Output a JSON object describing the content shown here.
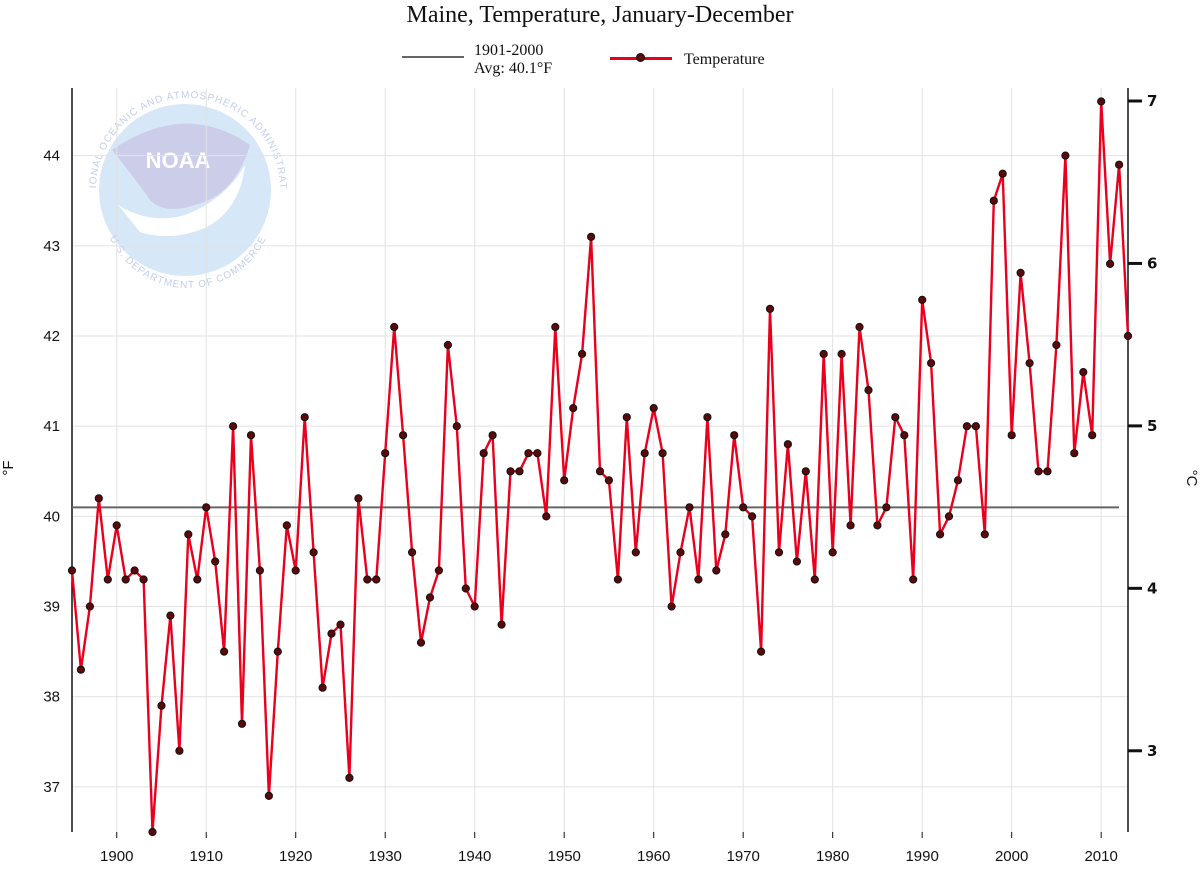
{
  "chart_data": {
    "type": "line",
    "title": "Maine, Temperature, January-December",
    "xlabel": "",
    "ylabel": "°F",
    "ylabel_right": "°C",
    "xlim": [
      1895,
      2013
    ],
    "ylim": [
      36.5,
      44.75
    ],
    "ylim_right_celsius": [
      2.5,
      7.08
    ],
    "x_ticks": [
      1900,
      1910,
      1920,
      1930,
      1940,
      1950,
      1960,
      1970,
      1980,
      1990,
      2000,
      2010
    ],
    "y_ticks": [
      37,
      38,
      39,
      40,
      41,
      42,
      43,
      44
    ],
    "y_ticks_right": [
      3,
      4,
      5,
      6,
      7
    ],
    "grid": true,
    "legend_position": "top-center",
    "reference_line": {
      "name_line1": "1901-2000",
      "name_line2": "Avg: 40.1°F",
      "value": 40.1,
      "color": "#666666"
    },
    "series": [
      {
        "name": "Temperature",
        "color": "#e8001c",
        "marker_color": "#5a0a0a",
        "x": [
          1895,
          1896,
          1897,
          1898,
          1899,
          1900,
          1901,
          1902,
          1903,
          1904,
          1905,
          1906,
          1907,
          1908,
          1909,
          1910,
          1911,
          1912,
          1913,
          1914,
          1915,
          1916,
          1917,
          1918,
          1919,
          1920,
          1921,
          1922,
          1923,
          1924,
          1925,
          1926,
          1927,
          1928,
          1929,
          1930,
          1931,
          1932,
          1933,
          1934,
          1935,
          1936,
          1937,
          1938,
          1939,
          1940,
          1941,
          1942,
          1943,
          1944,
          1945,
          1946,
          1947,
          1948,
          1949,
          1950,
          1951,
          1952,
          1953,
          1954,
          1955,
          1956,
          1957,
          1958,
          1959,
          1960,
          1961,
          1962,
          1963,
          1964,
          1965,
          1966,
          1967,
          1968,
          1969,
          1970,
          1971,
          1972,
          1973,
          1974,
          1975,
          1976,
          1977,
          1978,
          1979,
          1980,
          1981,
          1982,
          1983,
          1984,
          1985,
          1986,
          1987,
          1988,
          1989,
          1990,
          1991,
          1992,
          1993,
          1994,
          1995,
          1996,
          1997,
          1998,
          1999,
          2000,
          2001,
          2002,
          2003,
          2004,
          2005,
          2006,
          2007,
          2008,
          2009,
          2010,
          2011,
          2012,
          2013
        ],
        "values": [
          39.4,
          38.3,
          39.0,
          40.2,
          39.3,
          39.9,
          39.3,
          39.4,
          39.3,
          36.5,
          37.9,
          38.9,
          37.4,
          39.8,
          39.3,
          40.1,
          39.5,
          38.5,
          41.0,
          37.7,
          40.9,
          39.4,
          36.9,
          38.5,
          39.9,
          39.4,
          41.1,
          39.6,
          38.1,
          38.7,
          38.8,
          37.1,
          40.2,
          39.3,
          39.3,
          40.7,
          42.1,
          40.9,
          39.6,
          38.6,
          39.1,
          39.4,
          41.9,
          41.0,
          39.2,
          39.0,
          40.7,
          40.9,
          38.8,
          40.5,
          40.5,
          40.7,
          40.7,
          40.0,
          42.1,
          40.4,
          41.2,
          41.8,
          43.1,
          40.5,
          40.4,
          39.3,
          41.1,
          39.6,
          40.7,
          41.2,
          40.7,
          39.0,
          39.6,
          40.1,
          39.3,
          41.1,
          39.4,
          39.8,
          40.9,
          40.1,
          40.0,
          38.5,
          42.3,
          39.6,
          40.8,
          39.5,
          40.5,
          39.3,
          41.8,
          39.6,
          41.8,
          39.9,
          42.1,
          41.4,
          39.9,
          40.1,
          41.1,
          40.9,
          39.3,
          42.4,
          41.7,
          39.8,
          40.0,
          40.4,
          41.0,
          41.0,
          39.8,
          43.5,
          43.8,
          40.9,
          42.7,
          41.7,
          40.5,
          40.5,
          41.9,
          44.0,
          40.7,
          41.6,
          40.9,
          44.6,
          42.8,
          43.9,
          42.0
        ]
      }
    ]
  },
  "legend": {
    "avg_line1": "1901-2000",
    "avg_line2": "Avg: 40.1°F",
    "temp_label": "Temperature"
  },
  "watermark": {
    "agency": "NOAA",
    "ring_top": "NATIONAL OCEANIC AND ATMOSPHERIC ADMINISTRATION",
    "ring_bottom": "U.S. DEPARTMENT OF COMMERCE"
  }
}
